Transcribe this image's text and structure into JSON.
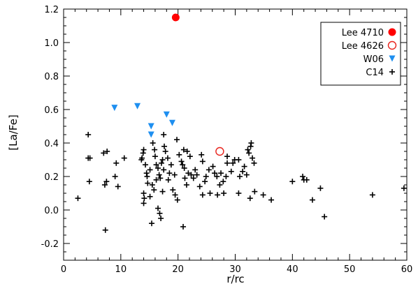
{
  "chart_data": {
    "type": "scatter",
    "title": "",
    "xlabel": "r/rc",
    "ylabel": "[La/Fe]",
    "xlim": [
      0,
      60
    ],
    "ylim": [
      -0.3,
      1.2
    ],
    "xticks": [
      0,
      10,
      20,
      30,
      40,
      50,
      60
    ],
    "yticks": [
      -0.2,
      0.0,
      0.2,
      0.4,
      0.6,
      0.8,
      1.0,
      1.2
    ],
    "xtick_labels": [
      "0",
      "10",
      "20",
      "30",
      "40",
      "50",
      "60"
    ],
    "ytick_labels": [
      "-0.2",
      "0.0",
      "0.2",
      "0.4",
      "0.6",
      "0.8",
      "1.0",
      "1.2"
    ],
    "grid": false,
    "legend_position": "top-right",
    "series": [
      {
        "name": "Lee 4710",
        "marker": "filled-circle",
        "color": "#ff0000",
        "points": [
          [
            19.6,
            1.15
          ]
        ]
      },
      {
        "name": "Lee 4626",
        "marker": "open-circle",
        "color": "#e8231c",
        "points": [
          [
            27.3,
            0.35
          ]
        ]
      },
      {
        "name": "W06",
        "marker": "triangle-down",
        "color": "#1e8ff0",
        "points": [
          [
            8.9,
            0.61
          ],
          [
            12.9,
            0.62
          ],
          [
            15.3,
            0.5
          ],
          [
            15.3,
            0.45
          ],
          [
            18.0,
            0.57
          ],
          [
            19.0,
            0.52
          ]
        ]
      },
      {
        "name": "C14",
        "marker": "plus",
        "color": "#000000",
        "points": [
          [
            2.5,
            0.07
          ],
          [
            4.3,
            0.45
          ],
          [
            4.3,
            0.31
          ],
          [
            4.6,
            0.31
          ],
          [
            4.5,
            0.17
          ],
          [
            7.0,
            0.34
          ],
          [
            7.6,
            0.35
          ],
          [
            7.2,
            0.15
          ],
          [
            7.5,
            0.17
          ],
          [
            7.3,
            -0.12
          ],
          [
            9.2,
            0.28
          ],
          [
            9.5,
            0.14
          ],
          [
            9.0,
            0.2
          ],
          [
            10.6,
            0.31
          ],
          [
            13.6,
            0.3
          ],
          [
            14.0,
            0.36
          ],
          [
            13.9,
            0.34
          ],
          [
            13.7,
            0.31
          ],
          [
            14.3,
            0.27
          ],
          [
            14.5,
            0.22
          ],
          [
            14.6,
            0.2
          ],
          [
            14.0,
            0.1
          ],
          [
            14.1,
            0.07
          ],
          [
            14.0,
            0.04
          ],
          [
            14.7,
            0.16
          ],
          [
            15.1,
            0.08
          ],
          [
            15.1,
            0.24
          ],
          [
            15.5,
            0.15
          ],
          [
            15.8,
            0.12
          ],
          [
            15.6,
            0.4
          ],
          [
            15.9,
            0.36
          ],
          [
            16.0,
            0.32
          ],
          [
            16.2,
            0.27
          ],
          [
            16.5,
            0.25
          ],
          [
            16.7,
            0.21
          ],
          [
            16.9,
            0.19
          ],
          [
            17.1,
            0.28
          ],
          [
            17.3,
            0.3
          ],
          [
            17.5,
            0.24
          ],
          [
            17.5,
            0.45
          ],
          [
            17.8,
            0.35
          ],
          [
            17.6,
            0.38
          ],
          [
            18.2,
            0.31
          ],
          [
            18.5,
            0.22
          ],
          [
            16.5,
            0.01
          ],
          [
            16.8,
            -0.02
          ],
          [
            17.0,
            -0.05
          ],
          [
            16.2,
            0.18
          ],
          [
            15.4,
            -0.08
          ],
          [
            17.3,
            0.11
          ],
          [
            18.3,
            0.18
          ],
          [
            18.8,
            0.27
          ],
          [
            19.4,
            0.21
          ],
          [
            19.1,
            0.12
          ],
          [
            19.5,
            0.09
          ],
          [
            19.9,
            0.06
          ],
          [
            19.8,
            0.42
          ],
          [
            20.2,
            0.33
          ],
          [
            20.6,
            0.29
          ],
          [
            20.8,
            0.27
          ],
          [
            21.1,
            0.25
          ],
          [
            21.0,
            0.36
          ],
          [
            21.6,
            0.35
          ],
          [
            21.8,
            0.22
          ],
          [
            21.2,
            0.19
          ],
          [
            21.5,
            0.15
          ],
          [
            20.9,
            -0.1
          ],
          [
            22.3,
            0.21
          ],
          [
            22.1,
            0.32
          ],
          [
            22.7,
            0.19
          ],
          [
            23.0,
            0.24
          ],
          [
            23.3,
            0.21
          ],
          [
            23.8,
            0.14
          ],
          [
            24.3,
            0.29
          ],
          [
            24.1,
            0.33
          ],
          [
            24.9,
            0.2
          ],
          [
            24.7,
            0.17
          ],
          [
            24.3,
            0.09
          ],
          [
            25.4,
            0.24
          ],
          [
            25.6,
            0.1
          ],
          [
            26.1,
            0.26
          ],
          [
            26.8,
            0.2
          ],
          [
            27.5,
            0.22
          ],
          [
            27.3,
            0.15
          ],
          [
            27.9,
            0.17
          ],
          [
            26.4,
            0.22
          ],
          [
            26.9,
            0.09
          ],
          [
            28.0,
            0.1
          ],
          [
            28.4,
            0.2
          ],
          [
            28.6,
            0.28
          ],
          [
            28.6,
            0.32
          ],
          [
            29.3,
            0.23
          ],
          [
            29.6,
            0.28
          ],
          [
            29.9,
            0.3
          ],
          [
            30.6,
            0.3
          ],
          [
            30.8,
            0.2
          ],
          [
            31.3,
            0.23
          ],
          [
            31.6,
            0.26
          ],
          [
            32.0,
            0.21
          ],
          [
            32.4,
            0.34
          ],
          [
            32.2,
            0.36
          ],
          [
            32.7,
            0.38
          ],
          [
            32.8,
            0.4
          ],
          [
            33.0,
            0.31
          ],
          [
            33.3,
            0.28
          ],
          [
            30.6,
            0.1
          ],
          [
            32.6,
            0.07
          ],
          [
            33.4,
            0.11
          ],
          [
            34.9,
            0.09
          ],
          [
            36.3,
            0.06
          ],
          [
            40.0,
            0.17
          ],
          [
            41.8,
            0.2
          ],
          [
            42.0,
            0.18
          ],
          [
            42.5,
            0.18
          ],
          [
            43.5,
            0.06
          ],
          [
            44.9,
            0.13
          ],
          [
            45.6,
            -0.04
          ],
          [
            54.0,
            0.09
          ],
          [
            59.5,
            0.13
          ]
        ]
      }
    ]
  }
}
